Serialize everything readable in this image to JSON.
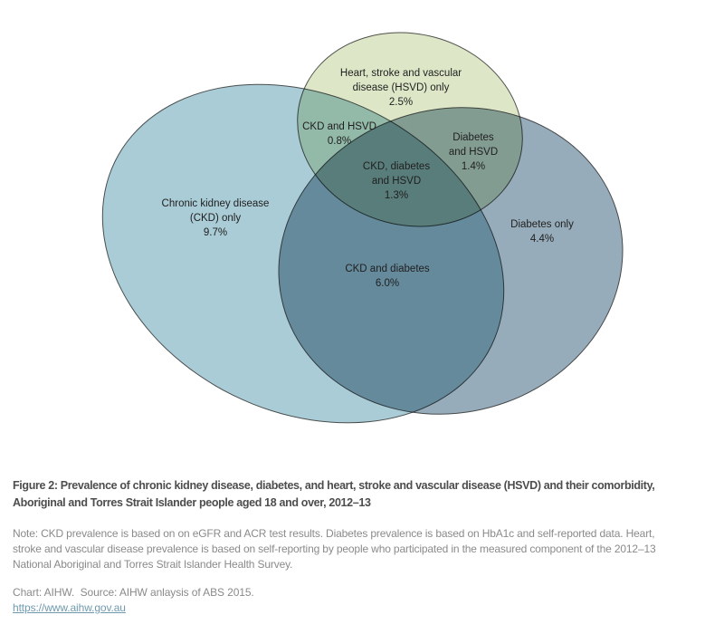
{
  "figure": {
    "caption": "Figure 2: Prevalence of chronic kidney disease, diabetes, and heart, stroke and vascular disease (HSVD) and their comorbidity,\nAboriginal and Torres Strait Islander people aged 18 and over, 2012–13",
    "note": "Note: CKD prevalence is based on on eGFR and ACR test results. Diabetes prevalence is based on HbA1c and self-reported data. Heart,\nstroke and vascular disease prevalence is based on self-reporting by people who participated in the measured component of the 2012–13\nNational Aboriginal and Torres Strait Islander Health Survey.",
    "credit": "Chart: AIHW.  Source: AIHW anlaysis of ABS 2015.",
    "link": "https://www.aihw.gov.au"
  },
  "chart_data": {
    "type": "venn",
    "title": "Prevalence of chronic kidney disease, diabetes, and heart, stroke and vascular disease (HSVD) and their comorbidity, Aboriginal and Torres Strait Islander people aged 18 and over, 2012–13",
    "sets": [
      "Chronic kidney disease (CKD)",
      "Diabetes",
      "Heart, stroke and vascular disease (HSVD)"
    ],
    "regions": [
      {
        "sets": [
          "CKD"
        ],
        "value_pct": 9.7,
        "label": "Chronic kidney disease\n(CKD) only\n9.7%"
      },
      {
        "sets": [
          "HSVD"
        ],
        "value_pct": 2.5,
        "label": "Heart, stroke and vascular\ndisease (HSVD) only\n2.5%"
      },
      {
        "sets": [
          "Diabetes"
        ],
        "value_pct": 4.4,
        "label": "Diabetes only\n4.4%"
      },
      {
        "sets": [
          "CKD",
          "HSVD"
        ],
        "value_pct": 0.8,
        "label": "CKD and HSVD\n0.8%"
      },
      {
        "sets": [
          "Diabetes",
          "HSVD"
        ],
        "value_pct": 1.4,
        "label": "Diabetes\nand HSVD\n1.4%"
      },
      {
        "sets": [
          "CKD",
          "Diabetes"
        ],
        "value_pct": 6.0,
        "label": "CKD and diabetes\n6.0%"
      },
      {
        "sets": [
          "CKD",
          "Diabetes",
          "HSVD"
        ],
        "value_pct": 1.3,
        "label": "CKD, diabetes\nand HSVD\n1.3%"
      }
    ],
    "colors": {
      "ckd_fill": "#aaccd6",
      "diabetes_fill": "#97acba",
      "hsvd_fill": "#dde7c8",
      "outline": "#4a4a4a",
      "label_text": "#1f1f1f",
      "caption_text": "#4d4d4d",
      "note_text": "#8a8a8a",
      "link_color": "#6f9aae"
    },
    "legend": "none",
    "grid": false
  }
}
